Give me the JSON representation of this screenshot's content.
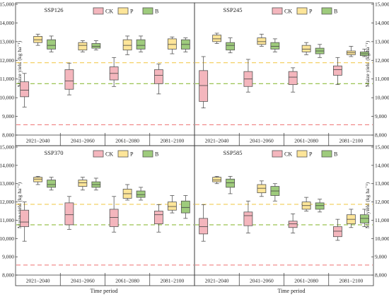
{
  "chart_data": {
    "type": "box",
    "shared_xlabel": "Time period",
    "ylabel": "Maize yield (kg ha⁻¹)",
    "ylim": [
      8000,
      15000
    ],
    "yticks": [
      8000,
      9000,
      10000,
      11000,
      12000,
      13000,
      14000,
      15000
    ],
    "ytick_labels": [
      "8,000",
      "9,000",
      "10,000",
      "11,000",
      "12,000",
      "13,000",
      "14,000",
      "15,000"
    ],
    "categories": [
      "2021–2040",
      "2041–2060",
      "2061–2080",
      "2081–2100"
    ],
    "legend": [
      "CK",
      "P",
      "B"
    ],
    "colors": {
      "CK": "#f4b6bd",
      "P": "#fde599",
      "B": "#9ecb7c"
    },
    "reference_lines": [
      {
        "series": "CK",
        "value": 8550,
        "color": "#f08080"
      },
      {
        "series": "P",
        "value": 11870,
        "color": "#f2cc55"
      },
      {
        "series": "B",
        "value": 10750,
        "color": "#8fbc3f"
      }
    ],
    "panels": [
      {
        "title": "SSP126",
        "series": [
          {
            "name": "CK",
            "boxes": [
              {
                "min": 9500,
                "q1": 10050,
                "median": 10400,
                "q3": 10850,
                "max": 11300
              },
              {
                "min": 10150,
                "q1": 10450,
                "median": 10900,
                "q3": 11500,
                "max": 11850
              },
              {
                "min": 10600,
                "q1": 10950,
                "median": 11300,
                "q3": 11650,
                "max": 12150
              },
              {
                "min": 10200,
                "q1": 10750,
                "median": 11200,
                "q3": 11500,
                "max": 11800
              }
            ]
          },
          {
            "name": "P",
            "boxes": [
              {
                "min": 12800,
                "q1": 12950,
                "median": 13100,
                "q3": 13280,
                "max": 13400
              },
              {
                "min": 12450,
                "q1": 12550,
                "median": 12800,
                "q3": 12950,
                "max": 13050
              },
              {
                "min": 12300,
                "q1": 12550,
                "median": 12800,
                "q3": 13100,
                "max": 13300
              },
              {
                "min": 12350,
                "q1": 12600,
                "median": 12850,
                "q3": 13150,
                "max": 13250
              }
            ]
          },
          {
            "name": "B",
            "boxes": [
              {
                "min": 12450,
                "q1": 12600,
                "median": 12800,
                "q3": 13100,
                "max": 13300
              },
              {
                "min": 12550,
                "q1": 12650,
                "median": 12750,
                "q3": 12900,
                "max": 13050
              },
              {
                "min": 12450,
                "q1": 12600,
                "median": 12800,
                "q3": 13100,
                "max": 13300
              },
              {
                "min": 12450,
                "q1": 12600,
                "median": 12850,
                "q3": 13100,
                "max": 13200
              }
            ]
          }
        ]
      },
      {
        "title": "SSP245",
        "series": [
          {
            "name": "CK",
            "boxes": [
              {
                "min": 9450,
                "q1": 9800,
                "median": 10650,
                "q3": 11450,
                "max": 12200
              },
              {
                "min": 10300,
                "q1": 10600,
                "median": 11000,
                "q3": 11400,
                "max": 12050
              },
              {
                "min": 10300,
                "q1": 10700,
                "median": 11100,
                "q3": 11400,
                "max": 11600
              },
              {
                "min": 10700,
                "q1": 11200,
                "median": 11500,
                "q3": 11700,
                "max": 12150
              }
            ]
          },
          {
            "name": "P",
            "boxes": [
              {
                "min": 12900,
                "q1": 13000,
                "median": 13150,
                "q3": 13350,
                "max": 13450
              },
              {
                "min": 12750,
                "q1": 12850,
                "median": 13000,
                "q3": 13200,
                "max": 13400
              },
              {
                "min": 12300,
                "q1": 12450,
                "median": 12600,
                "q3": 12800,
                "max": 12950
              },
              {
                "min": 12200,
                "q1": 12300,
                "median": 12400,
                "q3": 12500,
                "max": 12750
              }
            ]
          },
          {
            "name": "B",
            "boxes": [
              {
                "min": 12400,
                "q1": 12550,
                "median": 12800,
                "q3": 12950,
                "max": 13200
              },
              {
                "min": 12450,
                "q1": 12600,
                "median": 12750,
                "q3": 12950,
                "max": 13150
              },
              {
                "min": 12150,
                "q1": 12350,
                "median": 12500,
                "q3": 12650,
                "max": 12850
              },
              {
                "min": 12200,
                "q1": 12250,
                "median": 12350,
                "q3": 12450,
                "max": 12600
              }
            ]
          }
        ]
      },
      {
        "title": "SSP370",
        "series": [
          {
            "name": "CK",
            "boxes": [
              {
                "min": 9850,
                "q1": 10650,
                "median": 10900,
                "q3": 11550,
                "max": 12000
              },
              {
                "min": 10500,
                "q1": 10750,
                "median": 11300,
                "q3": 11950,
                "max": 12300
              },
              {
                "min": 10350,
                "q1": 10650,
                "median": 11150,
                "q3": 11600,
                "max": 12300
              },
              {
                "min": 10350,
                "q1": 10800,
                "median": 11300,
                "q3": 11500,
                "max": 11850
              }
            ]
          },
          {
            "name": "P",
            "boxes": [
              {
                "min": 12950,
                "q1": 13100,
                "median": 13250,
                "q3": 13350,
                "max": 13400
              },
              {
                "min": 12650,
                "q1": 12850,
                "median": 13050,
                "q3": 13200,
                "max": 13350
              },
              {
                "min": 12100,
                "q1": 12200,
                "median": 12450,
                "q3": 12700,
                "max": 12950
              },
              {
                "min": 11400,
                "q1": 11550,
                "median": 11750,
                "q3": 12000,
                "max": 12350
              }
            ]
          },
          {
            "name": "B",
            "boxes": [
              {
                "min": 12650,
                "q1": 12800,
                "median": 12950,
                "q3": 13200,
                "max": 13350
              },
              {
                "min": 12650,
                "q1": 12800,
                "median": 12950,
                "q3": 13100,
                "max": 13300
              },
              {
                "min": 12100,
                "q1": 12250,
                "median": 12400,
                "q3": 12600,
                "max": 12800
              },
              {
                "min": 11100,
                "q1": 11400,
                "median": 11700,
                "q3": 12050,
                "max": 12350
              }
            ]
          }
        ]
      },
      {
        "title": "SSP585",
        "series": [
          {
            "name": "CK",
            "boxes": [
              {
                "min": 9850,
                "q1": 10250,
                "median": 10650,
                "q3": 11100,
                "max": 11850
              },
              {
                "min": 10300,
                "q1": 10700,
                "median": 11250,
                "q3": 11450,
                "max": 12050
              },
              {
                "min": 10300,
                "q1": 10600,
                "median": 10800,
                "q3": 10950,
                "max": 11350
              },
              {
                "min": 9900,
                "q1": 10100,
                "median": 10400,
                "q3": 10650,
                "max": 11050
              }
            ]
          },
          {
            "name": "P",
            "boxes": [
              {
                "min": 13000,
                "q1": 13100,
                "median": 13200,
                "q3": 13350,
                "max": 13400
              },
              {
                "min": 12300,
                "q1": 12500,
                "median": 12750,
                "q3": 12950,
                "max": 13150
              },
              {
                "min": 11500,
                "q1": 11600,
                "median": 11800,
                "q3": 12000,
                "max": 12250
              },
              {
                "min": 10600,
                "q1": 10800,
                "median": 11050,
                "q3": 11300,
                "max": 11600
              }
            ]
          },
          {
            "name": "B",
            "boxes": [
              {
                "min": 12450,
                "q1": 12800,
                "median": 13050,
                "q3": 13250,
                "max": 13400
              },
              {
                "min": 12050,
                "q1": 12350,
                "median": 12600,
                "q3": 12850,
                "max": 13000
              },
              {
                "min": 11450,
                "q1": 11600,
                "median": 11800,
                "q3": 11950,
                "max": 12150
              },
              {
                "min": 10650,
                "q1": 10850,
                "median": 11100,
                "q3": 11300,
                "max": 11600
              }
            ]
          }
        ]
      }
    ]
  }
}
